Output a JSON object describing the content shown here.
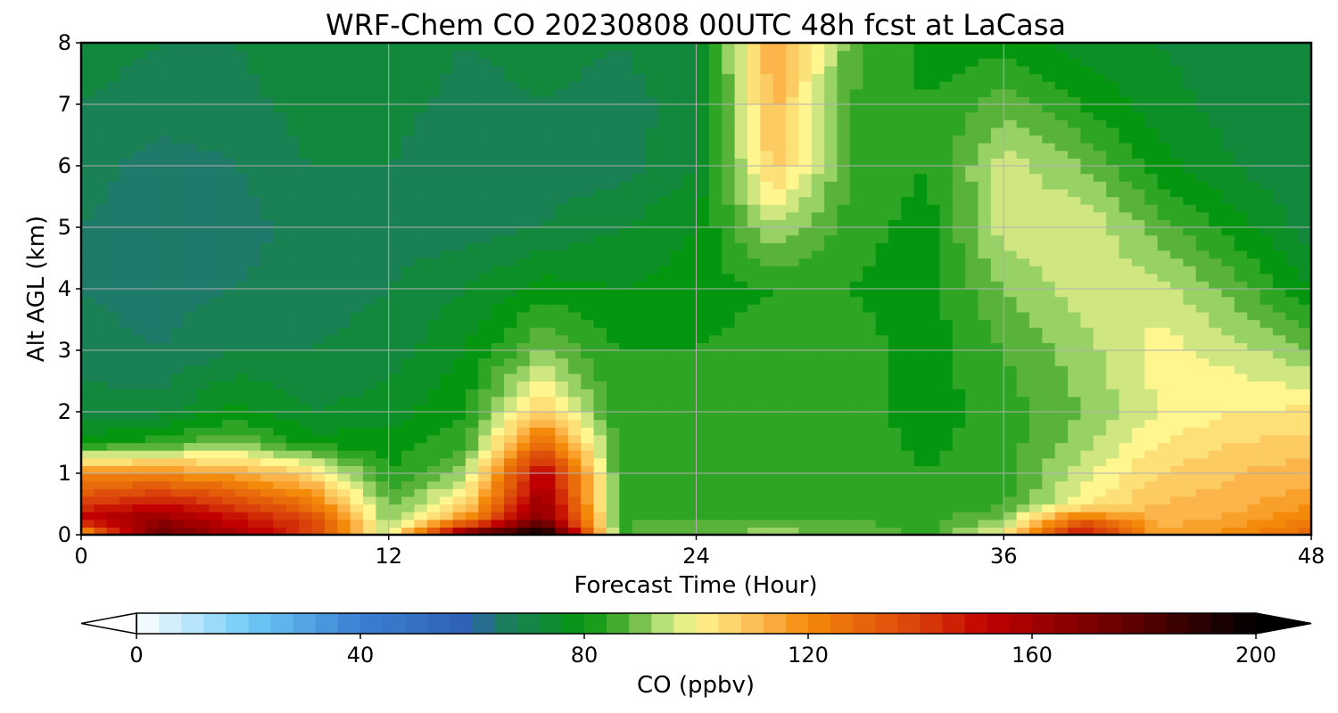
{
  "chart_data": {
    "type": "heatmap",
    "title": "WRF-Chem CO  20230808 00UTC 48h fcst at LaCasa",
    "xlabel": "Forecast Time (Hour)",
    "ylabel": "Alt AGL (km)",
    "xlim": [
      0,
      48
    ],
    "ylim": [
      0,
      8
    ],
    "xticks": [
      0,
      12,
      24,
      36,
      48
    ],
    "xtick_labels": [
      "0",
      "12",
      "24",
      "36",
      "48"
    ],
    "yticks": [
      0,
      1,
      2,
      3,
      4,
      5,
      6,
      7,
      8
    ],
    "ytick_labels": [
      "0",
      "1",
      "2",
      "3",
      "4",
      "5",
      "6",
      "7",
      "8"
    ],
    "grid": true,
    "colorbar": {
      "label": "CO  (ppbv)",
      "min": 0,
      "max": 200,
      "ticks": [
        0,
        40,
        80,
        120,
        160,
        200
      ],
      "tick_labels": [
        "0",
        "40",
        "80",
        "120",
        "160",
        "200"
      ],
      "extend": "both",
      "color_stops": [
        [
          0,
          "#ffffff"
        ],
        [
          20,
          "#6fcbf6"
        ],
        [
          40,
          "#3a7fd2"
        ],
        [
          60,
          "#2f60b4"
        ],
        [
          64,
          "#1f7a6a"
        ],
        [
          80,
          "#05960f"
        ],
        [
          88,
          "#59b33a"
        ],
        [
          94,
          "#b8e07a"
        ],
        [
          100,
          "#fff68f"
        ],
        [
          112,
          "#fbb54a"
        ],
        [
          120,
          "#f48a0a"
        ],
        [
          140,
          "#d9400a"
        ],
        [
          152,
          "#c00000"
        ],
        [
          175,
          "#6a0000"
        ],
        [
          200,
          "#000000"
        ]
      ]
    },
    "x": [
      0,
      3,
      6,
      9,
      12,
      15,
      18,
      21,
      24,
      27,
      30,
      33,
      36,
      39,
      42,
      45,
      48
    ],
    "y": [
      0,
      0.25,
      0.5,
      1,
      1.5,
      2,
      3,
      4,
      5,
      6,
      7,
      8
    ],
    "z": [
      [
        110,
        175,
        160,
        140,
        95,
        175,
        205,
        85,
        90,
        92,
        90,
        85,
        100,
        155,
        115,
        120,
        130
      ],
      [
        155,
        165,
        150,
        140,
        90,
        120,
        170,
        86,
        86,
        86,
        86,
        84,
        92,
        130,
        112,
        115,
        122
      ],
      [
        140,
        150,
        140,
        125,
        88,
        105,
        165,
        85,
        85,
        85,
        85,
        83,
        85,
        100,
        110,
        112,
        118
      ],
      [
        120,
        120,
        115,
        105,
        82,
        92,
        155,
        84,
        84,
        85,
        84,
        82,
        84,
        96,
        106,
        110,
        112
      ],
      [
        80,
        84,
        90,
        80,
        80,
        85,
        130,
        84,
        84,
        85,
        84,
        81,
        84,
        92,
        102,
        106,
        108
      ],
      [
        72,
        72,
        80,
        74,
        76,
        82,
        108,
        82,
        84,
        85,
        84,
        80,
        84,
        90,
        98,
        102,
        103
      ],
      [
        68,
        66,
        70,
        70,
        72,
        78,
        90,
        82,
        82,
        84,
        84,
        80,
        86,
        92,
        100,
        96,
        90
      ],
      [
        66,
        64,
        66,
        68,
        70,
        74,
        80,
        78,
        80,
        82,
        82,
        80,
        90,
        96,
        96,
        88,
        78
      ],
      [
        66,
        64,
        64,
        68,
        68,
        68,
        70,
        74,
        78,
        94,
        84,
        80,
        96,
        98,
        88,
        80,
        72
      ],
      [
        68,
        64,
        66,
        70,
        70,
        66,
        68,
        68,
        74,
        108,
        86,
        82,
        96,
        90,
        80,
        74,
        70
      ],
      [
        70,
        68,
        68,
        72,
        72,
        68,
        70,
        68,
        72,
        112,
        86,
        82,
        88,
        82,
        76,
        72,
        72
      ],
      [
        72,
        70,
        70,
        74,
        74,
        70,
        72,
        70,
        74,
        115,
        88,
        80,
        80,
        76,
        74,
        72,
        74
      ]
    ]
  }
}
